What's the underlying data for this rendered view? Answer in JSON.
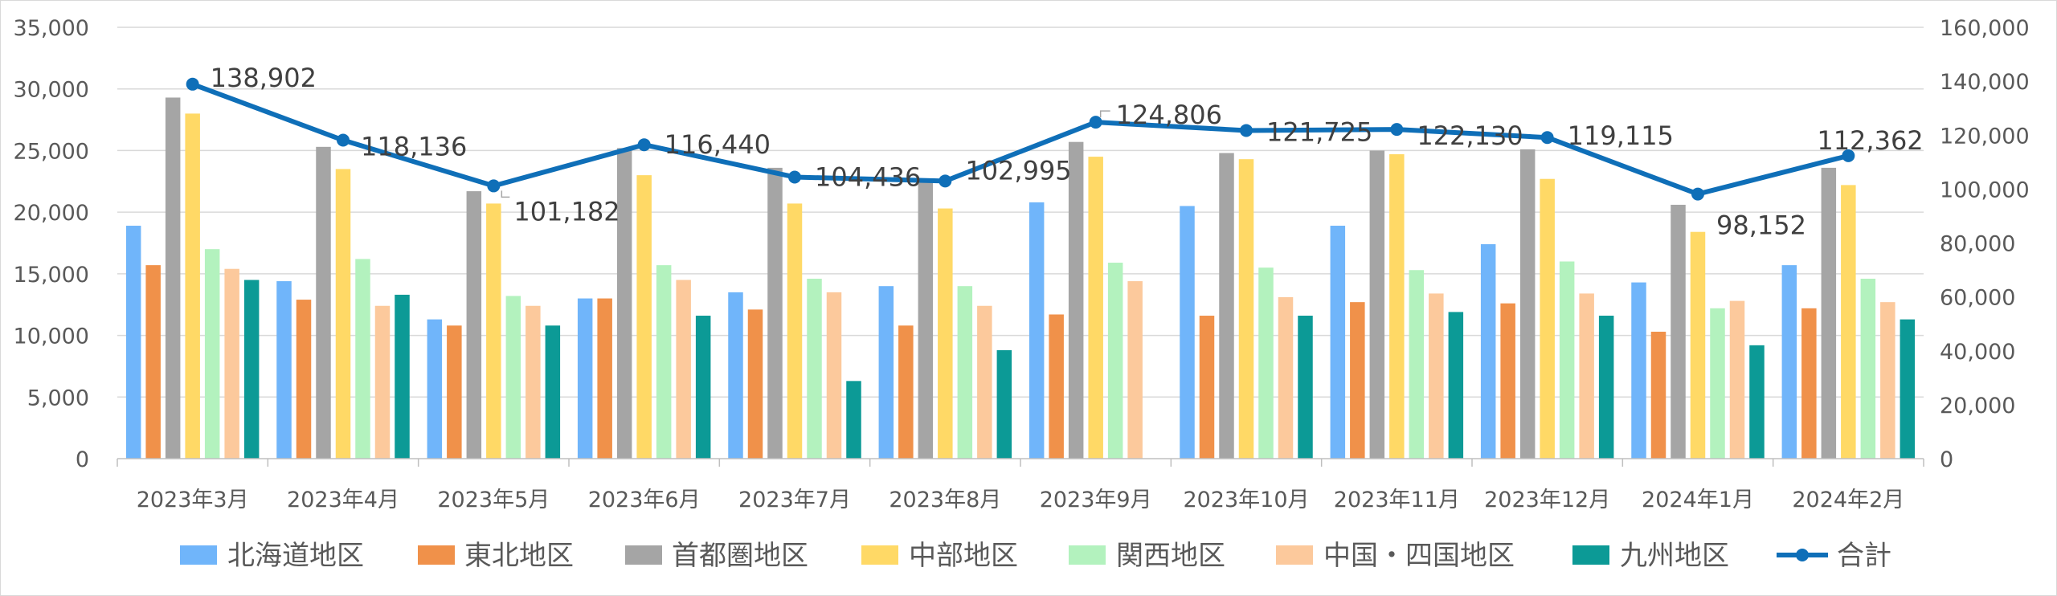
{
  "chart_data": {
    "type": "bar",
    "categories": [
      "2023年3月",
      "2023年4月",
      "2023年5月",
      "2023年6月",
      "2023年7月",
      "2023年8月",
      "2023年9月",
      "2023年10月",
      "2023年11月",
      "2023年12月",
      "2024年1月",
      "2024年2月"
    ],
    "series": [
      {
        "name": "北海道地区",
        "color": "#70b5fa",
        "values": [
          18900,
          14400,
          11300,
          13000,
          13500,
          14000,
          20800,
          20500,
          18900,
          17400,
          14300,
          15700
        ]
      },
      {
        "name": "東北地区",
        "color": "#f0914a",
        "values": [
          15700,
          12900,
          10800,
          13000,
          12100,
          10800,
          11700,
          11600,
          12700,
          12600,
          10300,
          12200
        ]
      },
      {
        "name": "首都圏地区",
        "color": "#a5a5a5",
        "values": [
          29300,
          25300,
          21700,
          25200,
          23600,
          22400,
          25700,
          24800,
          25000,
          25100,
          20600,
          23600
        ]
      },
      {
        "name": "中部地区",
        "color": "#ffd966",
        "values": [
          28000,
          23500,
          20700,
          23000,
          20700,
          20300,
          24500,
          24300,
          24700,
          22700,
          18400,
          22200
        ]
      },
      {
        "name": "関西地区",
        "color": "#b3f2be",
        "values": [
          17000,
          16200,
          13200,
          15700,
          14600,
          14000,
          15900,
          15500,
          15300,
          16000,
          12200,
          14600
        ]
      },
      {
        "name": "中国・四国地区",
        "color": "#fcc99c",
        "values": [
          15400,
          12400,
          12400,
          14500,
          13500,
          12400,
          14400,
          13100,
          13400,
          13400,
          12800,
          12700
        ]
      },
      {
        "name": "九州地区",
        "color": "#0c9a96",
        "values": [
          14500,
          13300,
          10800,
          11600,
          6300,
          8800,
          null,
          11600,
          11900,
          11600,
          9200,
          11300
        ]
      }
    ],
    "line_series": {
      "name": "合計",
      "color": "#0f6fb8",
      "axis": "right",
      "values": [
        138902,
        118136,
        101182,
        116440,
        104436,
        102995,
        124806,
        121725,
        122130,
        119115,
        98152,
        112362
      ],
      "labels": [
        "138,902",
        "118,136",
        "101,182",
        "116,440",
        "104,436",
        "102,995",
        "124,806",
        "121,725",
        "122,130",
        "119,115",
        "98,152",
        "112,362"
      ]
    },
    "y_left": {
      "min": 0,
      "max": 35000,
      "step": 5000,
      "ticks": [
        "0",
        "5,000",
        "10,000",
        "15,000",
        "20,000",
        "25,000",
        "30,000",
        "35,000"
      ]
    },
    "y_right": {
      "min": 0,
      "max": 160000,
      "step": 20000,
      "ticks": [
        "0",
        "20,000",
        "40,000",
        "60,000",
        "80,000",
        "100,000",
        "120,000",
        "140,000",
        "160,000"
      ]
    },
    "grid": true,
    "legend_position": "bottom"
  }
}
